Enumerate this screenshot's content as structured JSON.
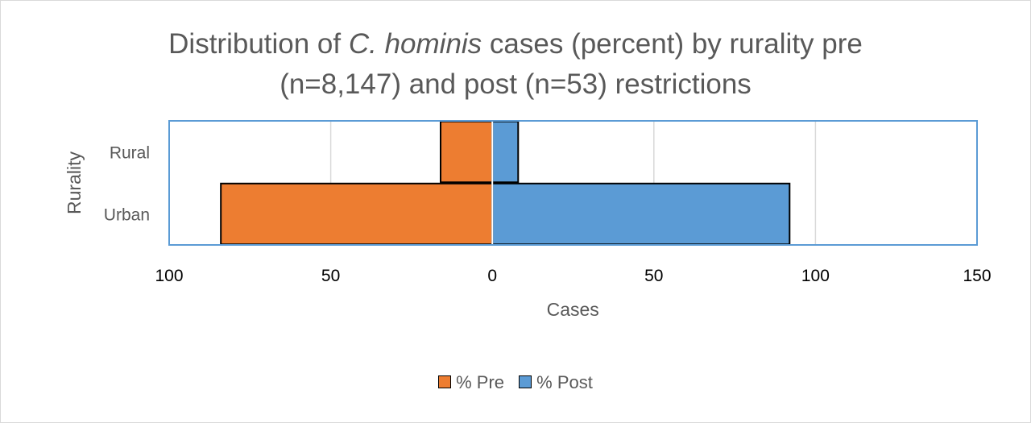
{
  "chart_data": {
    "type": "bar",
    "orientation": "horizontal",
    "layout": "diverging",
    "title": {
      "line1_prefix": "Distribution of ",
      "line1_italic": "C. hominis",
      "line1_suffix": " cases (percent) by rurality pre",
      "line2": "(n=8,147)  and post (n=53) restrictions"
    },
    "xlabel": "Cases",
    "ylabel": "Rurality",
    "categories": [
      "Rural",
      "Urban"
    ],
    "series": [
      {
        "name": "% Pre",
        "values": [
          16,
          84
        ],
        "color": "#ed7d31",
        "direction": "left"
      },
      {
        "name": "% Post",
        "values": [
          8,
          92
        ],
        "color": "#5b9bd5",
        "direction": "right"
      }
    ],
    "xlim": [
      -100,
      150
    ],
    "x_ticks": [
      -100,
      -50,
      0,
      50,
      100,
      150
    ],
    "x_tick_labels": [
      "100",
      "50",
      "0",
      "50",
      "100",
      "150"
    ],
    "grid": true,
    "legend_position": "bottom",
    "plot_border_color": "#5b9bd5"
  }
}
